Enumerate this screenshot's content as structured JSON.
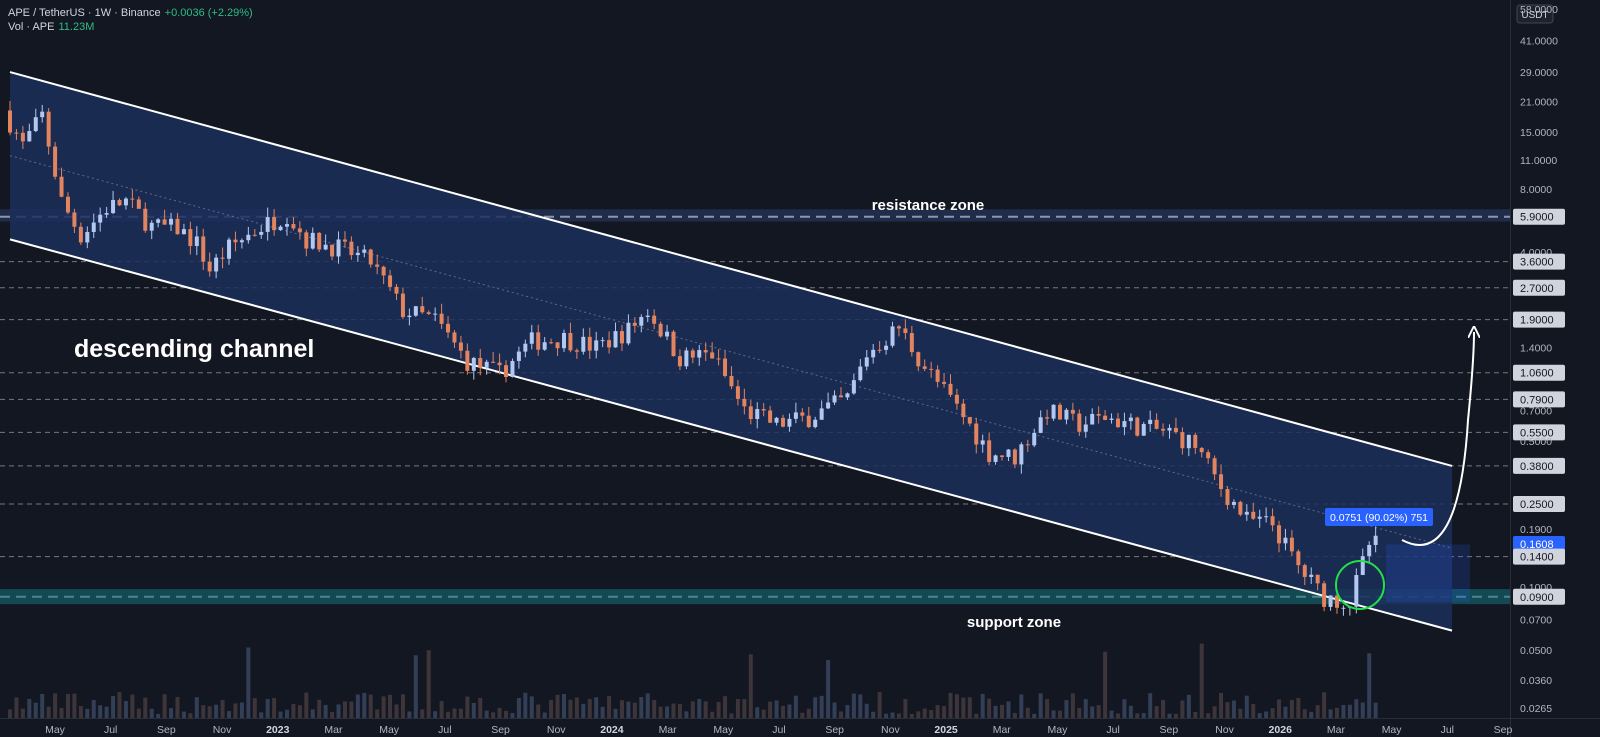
{
  "header": {
    "title": "APE / TetherUS · 1W · Binance",
    "change": "+0.0036 (+2.29%)",
    "vol_label": "Vol · APE",
    "vol_value": "11.23M"
  },
  "currency_badge": "USDT",
  "colors": {
    "background": "#131722",
    "up_candle": "#b2c8f0",
    "down_candle": "#e3845e",
    "channel_fill": "#1c2f5a",
    "channel_line": "#ffffff",
    "support_fill": "#135b63",
    "price_badge": "#2962ff",
    "highlight_circle": "#22e04a"
  },
  "chart_data": {
    "type": "candlestick",
    "symbol": "APE/USDT",
    "interval": "1W",
    "exchange": "Binance",
    "y_scale": "log",
    "ylim": [
      0.0245,
      60
    ],
    "y_ticks": [
      "58.0000",
      "41.0000",
      "29.0000",
      "21.0000",
      "15.0000",
      "11.0000",
      "8.0000",
      "5.9000",
      "4.0000",
      "3.6000",
      "2.7000",
      "1.9000",
      "1.4000",
      "1.0600",
      "0.7900",
      "0.7000",
      "0.5500",
      "0.5000",
      "0.3800",
      "0.2500",
      "0.1900",
      "0.1608",
      "0.1400",
      "0.1000",
      "0.0900",
      "0.0700",
      "0.0500",
      "0.0360",
      "0.0265"
    ],
    "x_ticks": [
      "May",
      "Jul",
      "Sep",
      "Nov",
      "2023",
      "Mar",
      "May",
      "Jul",
      "Sep",
      "Nov",
      "2024",
      "Mar",
      "May",
      "Jul",
      "Sep",
      "Nov",
      "2025",
      "Mar",
      "May",
      "Jul",
      "Sep",
      "Nov",
      "2026",
      "Mar",
      "May",
      "Jul",
      "Sep"
    ],
    "x_range": [
      "2022-04-04",
      "2026-09-20"
    ],
    "current_price": "0.1608",
    "measure_label": "0.0751 (90.02%) 751",
    "price_path": [
      [
        "2022-04-04",
        19.0
      ],
      [
        "2022-04-25",
        13.0
      ],
      [
        "2022-05-16",
        18.0
      ],
      [
        "2022-06-06",
        7.0
      ],
      [
        "2022-06-27",
        4.8
      ],
      [
        "2022-07-25",
        6.5
      ],
      [
        "2022-08-15",
        7.0
      ],
      [
        "2022-09-12",
        5.3
      ],
      [
        "2022-10-10",
        5.2
      ],
      [
        "2022-10-31",
        4.4
      ],
      [
        "2022-11-14",
        3.3
      ],
      [
        "2022-12-05",
        4.2
      ],
      [
        "2023-01-09",
        5.3
      ],
      [
        "2023-02-06",
        6.1
      ],
      [
        "2023-02-27",
        4.6
      ],
      [
        "2023-04-03",
        4.2
      ],
      [
        "2023-05-08",
        3.6
      ],
      [
        "2023-06-12",
        2.1
      ],
      [
        "2023-07-17",
        1.9
      ],
      [
        "2023-08-21",
        1.2
      ],
      [
        "2023-09-25",
        1.05
      ],
      [
        "2023-10-30",
        1.5
      ],
      [
        "2023-12-04",
        1.55
      ],
      [
        "2024-01-08",
        1.4
      ],
      [
        "2024-02-12",
        1.7
      ],
      [
        "2024-03-04",
        2.1
      ],
      [
        "2024-04-08",
        1.25
      ],
      [
        "2024-05-13",
        1.3
      ],
      [
        "2024-06-17",
        0.7
      ],
      [
        "2024-07-22",
        0.6
      ],
      [
        "2024-08-26",
        0.65
      ],
      [
        "2024-10-07",
        0.8
      ],
      [
        "2024-10-28",
        1.3
      ],
      [
        "2024-12-02",
        1.75
      ],
      [
        "2024-12-23",
        1.25
      ],
      [
        "2025-02-03",
        0.72
      ],
      [
        "2025-03-10",
        0.44
      ],
      [
        "2025-04-07",
        0.42
      ],
      [
        "2025-05-12",
        0.7
      ],
      [
        "2025-06-16",
        0.6
      ],
      [
        "2025-07-14",
        0.65
      ],
      [
        "2025-08-25",
        0.58
      ],
      [
        "2025-09-22",
        0.55
      ],
      [
        "2025-10-20",
        0.48
      ],
      [
        "2025-11-17",
        0.3
      ],
      [
        "2025-12-15",
        0.21
      ],
      [
        "2026-01-12",
        0.2
      ],
      [
        "2026-02-09",
        0.125
      ],
      [
        "2026-03-09",
        0.09
      ],
      [
        "2026-04-06",
        0.085
      ],
      [
        "2026-04-27",
        0.16
      ]
    ],
    "annotations": [
      {
        "text": "descending channel"
      },
      {
        "text": "resistance zone",
        "price": 5.9
      },
      {
        "text": "support zone",
        "price": 0.09
      }
    ],
    "channel": {
      "upper": [
        [
          "2022-04-04",
          29.0
        ],
        [
          "2026-07-19",
          0.38
        ]
      ],
      "lower": [
        [
          "2022-04-04",
          4.6
        ],
        [
          "2026-07-19",
          0.062
        ]
      ]
    },
    "resistance_zone": [
      5.6,
      6.4
    ],
    "support_zone": [
      0.083,
      0.098
    ],
    "horizontal_levels": [
      3.6,
      2.7,
      1.9,
      1.06,
      0.79,
      0.55,
      0.38,
      0.25,
      0.14
    ]
  }
}
